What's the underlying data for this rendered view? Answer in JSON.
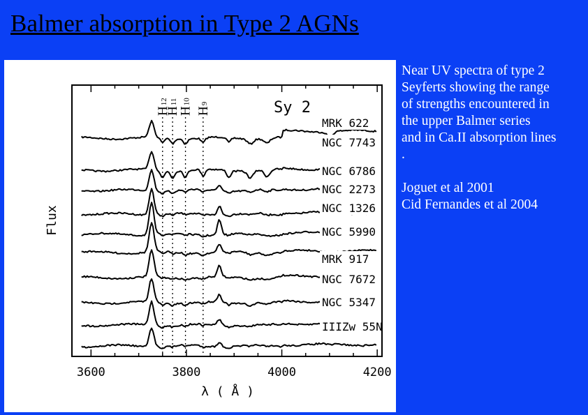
{
  "slide": {
    "title": "Balmer absorption in Type 2 AGNs",
    "caption_lines": [
      "Near UV spectra of type 2",
      "Seyferts showing the range",
      "of strengths encountered in",
      "the upper Balmer series",
      "and in Ca.II absorption lines",
      "."
    ],
    "references": [
      "Joguet et al 2001",
      "Cid Fernandes et al 2004"
    ]
  },
  "chart_data": {
    "type": "line",
    "title": "Sy 2",
    "xlabel": "λ ( Å )",
    "ylabel": "Flux",
    "xlim": [
      3560,
      4210
    ],
    "xticks": [
      3600,
      3800,
      4000,
      4200
    ],
    "grid": false,
    "balmer_lines": [
      {
        "label": "H",
        "sub": "12",
        "x": 3750
      },
      {
        "label": "H",
        "sub": "11",
        "x": 3771
      },
      {
        "label": "H",
        "sub": "10",
        "x": 3798
      },
      {
        "label": "H",
        "sub": "9",
        "x": 3835
      }
    ],
    "series": [
      {
        "name": "MRK 622"
      },
      {
        "name": "NGC 7743"
      },
      {
        "name": "NGC 6786"
      },
      {
        "name": "NGC 2273"
      },
      {
        "name": "NGC 1326"
      },
      {
        "name": "NGC 5990"
      },
      {
        "name": "MRK 917"
      },
      {
        "name": "NGC 7672"
      },
      {
        "name": "NGC 5347"
      },
      {
        "name": "IIIZw 55N"
      }
    ]
  }
}
